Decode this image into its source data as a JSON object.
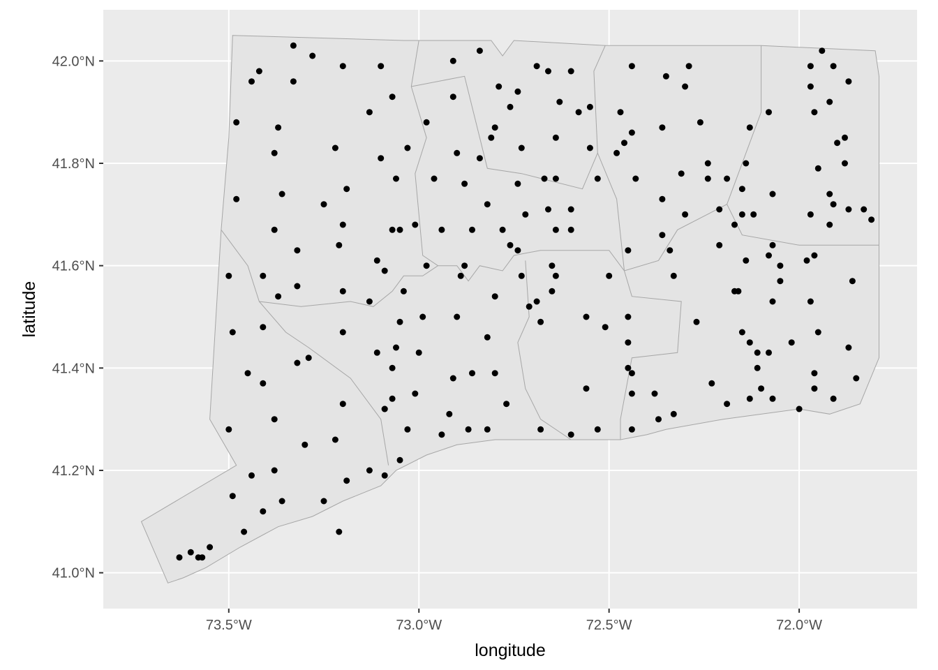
{
  "chart_data": {
    "type": "scatter",
    "title": "",
    "xlabel": "longitude",
    "ylabel": "latitude",
    "xlim": [
      -73.83,
      -71.69
    ],
    "ylim": [
      40.93,
      42.1
    ],
    "grid": true,
    "legend": "none",
    "x_ticks": [
      {
        "value": -73.5,
        "label": "73.5°W"
      },
      {
        "value": -73.0,
        "label": "73.0°W"
      },
      {
        "value": -72.5,
        "label": "72.5°W"
      },
      {
        "value": -72.0,
        "label": "72.0°W"
      }
    ],
    "y_ticks": [
      {
        "value": 41.0,
        "label": "41.0°N"
      },
      {
        "value": 41.2,
        "label": "41.2°N"
      },
      {
        "value": 41.4,
        "label": "41.4°N"
      },
      {
        "value": 41.6,
        "label": "41.6°N"
      },
      {
        "value": 41.8,
        "label": "41.8°N"
      },
      {
        "value": 42.0,
        "label": "42.0°N"
      }
    ],
    "colors": {
      "panel": "#ebebeb",
      "grid": "#ffffff",
      "region_fill": "#e4e4e4",
      "region_stroke": "#a6a6a6",
      "point": "#000000"
    },
    "regions": [
      {
        "name": "state",
        "lonlat": [
          [
            -73.49,
            42.05
          ],
          [
            -73.04,
            42.04
          ],
          [
            -72.81,
            42.04
          ],
          [
            -72.78,
            42.01
          ],
          [
            -72.75,
            42.04
          ],
          [
            -72.51,
            42.03
          ],
          [
            -72.1,
            42.03
          ],
          [
            -71.8,
            42.02
          ],
          [
            -71.79,
            41.97
          ],
          [
            -71.79,
            41.6
          ],
          [
            -71.79,
            41.42
          ],
          [
            -71.84,
            41.33
          ],
          [
            -71.92,
            41.31
          ],
          [
            -72.0,
            41.32
          ],
          [
            -72.2,
            41.3
          ],
          [
            -72.35,
            41.28
          ],
          [
            -72.4,
            41.27
          ],
          [
            -72.47,
            41.26
          ],
          [
            -72.55,
            41.26
          ],
          [
            -72.6,
            41.26
          ],
          [
            -72.7,
            41.26
          ],
          [
            -72.8,
            41.26
          ],
          [
            -72.9,
            41.25
          ],
          [
            -72.98,
            41.23
          ],
          [
            -73.06,
            41.2
          ],
          [
            -73.1,
            41.17
          ],
          [
            -73.2,
            41.14
          ],
          [
            -73.28,
            41.11
          ],
          [
            -73.37,
            41.09
          ],
          [
            -73.47,
            41.05
          ],
          [
            -73.56,
            41.01
          ],
          [
            -73.62,
            40.99
          ],
          [
            -73.66,
            40.98
          ],
          [
            -73.73,
            41.1
          ],
          [
            -73.48,
            41.21
          ],
          [
            -73.55,
            41.3
          ],
          [
            -73.52,
            41.67
          ],
          [
            -73.5,
            41.85
          ],
          [
            -73.49,
            42.05
          ]
        ]
      },
      {
        "name": "county-line",
        "lonlat": [
          [
            -73.52,
            41.67
          ],
          [
            -73.45,
            41.6
          ],
          [
            -73.42,
            41.53
          ],
          [
            -73.31,
            41.52
          ],
          [
            -73.18,
            41.53
          ],
          [
            -73.12,
            41.52
          ],
          [
            -73.07,
            41.55
          ],
          [
            -73.04,
            41.58
          ],
          [
            -72.99,
            41.58
          ],
          [
            -72.95,
            41.6
          ],
          [
            -72.9,
            41.6
          ],
          [
            -72.87,
            41.57
          ],
          [
            -72.84,
            41.6
          ],
          [
            -72.78,
            41.59
          ],
          [
            -72.75,
            41.62
          ],
          [
            -72.68,
            41.63
          ],
          [
            -72.55,
            41.63
          ],
          [
            -72.5,
            41.63
          ],
          [
            -72.46,
            41.59
          ]
        ]
      },
      {
        "name": "county-line",
        "lonlat": [
          [
            -73.0,
            42.04
          ],
          [
            -73.02,
            41.95
          ],
          [
            -72.98,
            41.85
          ],
          [
            -73.01,
            41.78
          ],
          [
            -72.99,
            41.62
          ],
          [
            -72.95,
            41.6
          ]
        ]
      },
      {
        "name": "county-line",
        "lonlat": [
          [
            -73.02,
            41.95
          ],
          [
            -72.88,
            41.97
          ],
          [
            -72.82,
            41.79
          ],
          [
            -72.73,
            41.78
          ],
          [
            -72.57,
            41.75
          ],
          [
            -72.53,
            41.82
          ],
          [
            -72.54,
            41.98
          ],
          [
            -72.51,
            42.03
          ]
        ]
      },
      {
        "name": "county-line",
        "lonlat": [
          [
            -72.53,
            41.82
          ],
          [
            -72.48,
            41.73
          ],
          [
            -72.46,
            41.59
          ],
          [
            -72.37,
            41.61
          ],
          [
            -72.32,
            41.67
          ],
          [
            -72.19,
            41.72
          ],
          [
            -72.1,
            41.9
          ],
          [
            -72.1,
            42.03
          ]
        ]
      },
      {
        "name": "county-line",
        "lonlat": [
          [
            -72.19,
            41.72
          ],
          [
            -72.15,
            41.66
          ],
          [
            -72.0,
            41.64
          ],
          [
            -71.79,
            41.64
          ]
        ]
      },
      {
        "name": "county-line",
        "lonlat": [
          [
            -72.72,
            41.61
          ],
          [
            -72.71,
            41.5
          ],
          [
            -72.74,
            41.45
          ],
          [
            -72.72,
            41.36
          ],
          [
            -72.68,
            41.3
          ],
          [
            -72.6,
            41.26
          ]
        ]
      },
      {
        "name": "county-line",
        "lonlat": [
          [
            -72.46,
            41.59
          ],
          [
            -72.44,
            41.54
          ],
          [
            -72.31,
            41.53
          ],
          [
            -72.32,
            41.43
          ],
          [
            -72.44,
            41.42
          ],
          [
            -72.47,
            41.3
          ],
          [
            -72.47,
            41.26
          ]
        ]
      },
      {
        "name": "county-line",
        "lonlat": [
          [
            -73.42,
            41.53
          ],
          [
            -73.35,
            41.47
          ],
          [
            -73.29,
            41.44
          ],
          [
            -73.18,
            41.38
          ],
          [
            -73.1,
            41.3
          ],
          [
            -73.08,
            41.21
          ]
        ]
      }
    ],
    "points": [
      [
        -73.33,
        42.03
      ],
      [
        -73.28,
        42.01
      ],
      [
        -73.2,
        41.99
      ],
      [
        -73.1,
        41.99
      ],
      [
        -73.42,
        41.98
      ],
      [
        -73.44,
        41.96
      ],
      [
        -73.33,
        41.96
      ],
      [
        -73.07,
        41.93
      ],
      [
        -73.13,
        41.9
      ],
      [
        -73.48,
        41.88
      ],
      [
        -73.37,
        41.87
      ],
      [
        -73.22,
        41.83
      ],
      [
        -73.38,
        41.82
      ],
      [
        -73.1,
        41.81
      ],
      [
        -73.03,
        41.83
      ],
      [
        -73.36,
        41.74
      ],
      [
        -73.19,
        41.75
      ],
      [
        -73.48,
        41.73
      ],
      [
        -73.25,
        41.72
      ],
      [
        -73.2,
        41.68
      ],
      [
        -73.06,
        41.77
      ],
      [
        -73.38,
        41.67
      ],
      [
        -73.07,
        41.67
      ],
      [
        -73.05,
        41.67
      ],
      [
        -73.01,
        41.68
      ],
      [
        -73.32,
        41.63
      ],
      [
        -73.21,
        41.64
      ],
      [
        -73.11,
        41.61
      ],
      [
        -73.5,
        41.58
      ],
      [
        -73.41,
        41.58
      ],
      [
        -73.09,
        41.59
      ],
      [
        -73.32,
        41.56
      ],
      [
        -73.2,
        41.55
      ],
      [
        -73.04,
        41.55
      ],
      [
        -73.37,
        41.54
      ],
      [
        -73.13,
        41.53
      ],
      [
        -73.41,
        41.48
      ],
      [
        -73.2,
        41.47
      ],
      [
        -73.05,
        41.49
      ],
      [
        -73.49,
        41.47
      ],
      [
        -73.06,
        41.44
      ],
      [
        -73.11,
        41.43
      ],
      [
        -73.32,
        41.41
      ],
      [
        -73.29,
        41.42
      ],
      [
        -73.07,
        41.4
      ],
      [
        -73.0,
        41.43
      ],
      [
        -73.45,
        41.39
      ],
      [
        -73.41,
        41.37
      ],
      [
        -73.07,
        41.34
      ],
      [
        -73.2,
        41.33
      ],
      [
        -73.09,
        41.32
      ],
      [
        -73.09,
        41.32
      ],
      [
        -73.01,
        41.35
      ],
      [
        -73.38,
        41.3
      ],
      [
        -73.03,
        41.28
      ],
      [
        -73.5,
        41.28
      ],
      [
        -73.3,
        41.25
      ],
      [
        -73.22,
        41.26
      ],
      [
        -73.05,
        41.22
      ],
      [
        -73.13,
        41.2
      ],
      [
        -73.38,
        41.2
      ],
      [
        -73.44,
        41.19
      ],
      [
        -73.09,
        41.19
      ],
      [
        -73.19,
        41.18
      ],
      [
        -73.49,
        41.15
      ],
      [
        -73.25,
        41.14
      ],
      [
        -73.36,
        41.14
      ],
      [
        -73.41,
        41.12
      ],
      [
        -73.46,
        41.08
      ],
      [
        -73.21,
        41.08
      ],
      [
        -73.55,
        41.05
      ],
      [
        -73.6,
        41.04
      ],
      [
        -73.58,
        41.03
      ],
      [
        -73.57,
        41.03
      ],
      [
        -73.63,
        41.03
      ],
      [
        -72.91,
        42.0
      ],
      [
        -72.84,
        42.02
      ],
      [
        -72.69,
        41.99
      ],
      [
        -72.66,
        41.98
      ],
      [
        -72.6,
        41.98
      ],
      [
        -72.79,
        41.95
      ],
      [
        -72.74,
        41.94
      ],
      [
        -72.91,
        41.93
      ],
      [
        -72.63,
        41.92
      ],
      [
        -72.76,
        41.91
      ],
      [
        -72.58,
        41.9
      ],
      [
        -72.55,
        41.91
      ],
      [
        -72.98,
        41.88
      ],
      [
        -72.8,
        41.87
      ],
      [
        -72.81,
        41.85
      ],
      [
        -72.64,
        41.85
      ],
      [
        -72.9,
        41.82
      ],
      [
        -72.73,
        41.83
      ],
      [
        -72.55,
        41.83
      ],
      [
        -72.84,
        41.81
      ],
      [
        -72.96,
        41.77
      ],
      [
        -72.88,
        41.76
      ],
      [
        -72.74,
        41.76
      ],
      [
        -72.67,
        41.77
      ],
      [
        -72.64,
        41.77
      ],
      [
        -72.53,
        41.77
      ],
      [
        -72.82,
        41.72
      ],
      [
        -72.72,
        41.7
      ],
      [
        -72.66,
        41.71
      ],
      [
        -72.6,
        41.71
      ],
      [
        -72.94,
        41.67
      ],
      [
        -72.86,
        41.67
      ],
      [
        -72.78,
        41.67
      ],
      [
        -72.64,
        41.67
      ],
      [
        -72.6,
        41.67
      ],
      [
        -72.76,
        41.64
      ],
      [
        -72.74,
        41.63
      ],
      [
        -72.98,
        41.6
      ],
      [
        -72.88,
        41.6
      ],
      [
        -72.89,
        41.58
      ],
      [
        -72.73,
        41.58
      ],
      [
        -72.65,
        41.6
      ],
      [
        -72.64,
        41.58
      ],
      [
        -72.8,
        41.54
      ],
      [
        -72.69,
        41.53
      ],
      [
        -72.71,
        41.52
      ],
      [
        -72.65,
        41.55
      ],
      [
        -72.99,
        41.5
      ],
      [
        -72.9,
        41.5
      ],
      [
        -72.68,
        41.49
      ],
      [
        -72.56,
        41.5
      ],
      [
        -72.51,
        41.48
      ],
      [
        -72.82,
        41.46
      ],
      [
        -72.8,
        41.39
      ],
      [
        -72.86,
        41.39
      ],
      [
        -72.91,
        41.38
      ],
      [
        -72.56,
        41.36
      ],
      [
        -72.77,
        41.33
      ],
      [
        -72.92,
        41.31
      ],
      [
        -72.94,
        41.27
      ],
      [
        -72.87,
        41.28
      ],
      [
        -72.82,
        41.28
      ],
      [
        -72.68,
        41.28
      ],
      [
        -72.6,
        41.27
      ],
      [
        -72.53,
        41.28
      ],
      [
        -72.5,
        41.58
      ],
      [
        -72.44,
        41.99
      ],
      [
        -72.29,
        41.99
      ],
      [
        -72.35,
        41.97
      ],
      [
        -72.3,
        41.95
      ],
      [
        -72.47,
        41.9
      ],
      [
        -72.44,
        41.86
      ],
      [
        -72.36,
        41.87
      ],
      [
        -72.26,
        41.88
      ],
      [
        -72.46,
        41.84
      ],
      [
        -72.48,
        41.82
      ],
      [
        -72.43,
        41.77
      ],
      [
        -72.31,
        41.78
      ],
      [
        -72.24,
        41.8
      ],
      [
        -72.24,
        41.77
      ],
      [
        -72.19,
        41.77
      ],
      [
        -72.36,
        41.73
      ],
      [
        -72.21,
        41.71
      ],
      [
        -72.3,
        41.7
      ],
      [
        -72.15,
        41.75
      ],
      [
        -72.15,
        41.7
      ],
      [
        -72.45,
        41.63
      ],
      [
        -72.36,
        41.66
      ],
      [
        -72.34,
        41.63
      ],
      [
        -72.21,
        41.64
      ],
      [
        -72.17,
        41.68
      ],
      [
        -72.14,
        41.61
      ],
      [
        -72.33,
        41.58
      ],
      [
        -72.45,
        41.5
      ],
      [
        -72.45,
        41.45
      ],
      [
        -72.27,
        41.49
      ],
      [
        -72.16,
        41.55
      ],
      [
        -72.45,
        41.4
      ],
      [
        -72.44,
        41.39
      ],
      [
        -72.44,
        41.35
      ],
      [
        -72.38,
        41.35
      ],
      [
        -72.37,
        41.3
      ],
      [
        -72.44,
        41.28
      ],
      [
        -72.33,
        41.31
      ],
      [
        -72.23,
        41.37
      ],
      [
        -72.19,
        41.33
      ],
      [
        -71.97,
        41.99
      ],
      [
        -71.91,
        41.99
      ],
      [
        -71.94,
        42.02
      ],
      [
        -71.97,
        41.95
      ],
      [
        -71.87,
        41.96
      ],
      [
        -71.96,
        41.9
      ],
      [
        -71.92,
        41.92
      ],
      [
        -72.08,
        41.9
      ],
      [
        -72.13,
        41.87
      ],
      [
        -71.9,
        41.84
      ],
      [
        -71.88,
        41.85
      ],
      [
        -71.95,
        41.79
      ],
      [
        -71.88,
        41.8
      ],
      [
        -72.14,
        41.8
      ],
      [
        -72.07,
        41.74
      ],
      [
        -71.92,
        41.74
      ],
      [
        -71.91,
        41.72
      ],
      [
        -71.87,
        41.71
      ],
      [
        -71.97,
        41.7
      ],
      [
        -71.92,
        41.68
      ],
      [
        -71.83,
        41.71
      ],
      [
        -71.81,
        41.69
      ],
      [
        -72.12,
        41.7
      ],
      [
        -72.07,
        41.64
      ],
      [
        -72.08,
        41.62
      ],
      [
        -72.05,
        41.6
      ],
      [
        -71.98,
        41.61
      ],
      [
        -71.96,
        41.62
      ],
      [
        -72.05,
        41.57
      ],
      [
        -71.86,
        41.57
      ],
      [
        -72.17,
        41.55
      ],
      [
        -71.97,
        41.53
      ],
      [
        -72.07,
        41.53
      ],
      [
        -71.95,
        41.47
      ],
      [
        -72.15,
        41.47
      ],
      [
        -72.13,
        41.45
      ],
      [
        -72.02,
        41.45
      ],
      [
        -71.87,
        41.44
      ],
      [
        -72.11,
        41.43
      ],
      [
        -72.08,
        41.43
      ],
      [
        -72.11,
        41.4
      ],
      [
        -71.96,
        41.39
      ],
      [
        -71.85,
        41.38
      ],
      [
        -71.96,
        41.36
      ],
      [
        -72.1,
        41.36
      ],
      [
        -72.13,
        41.34
      ],
      [
        -72.07,
        41.34
      ],
      [
        -72.0,
        41.32
      ],
      [
        -71.91,
        41.34
      ]
    ]
  }
}
